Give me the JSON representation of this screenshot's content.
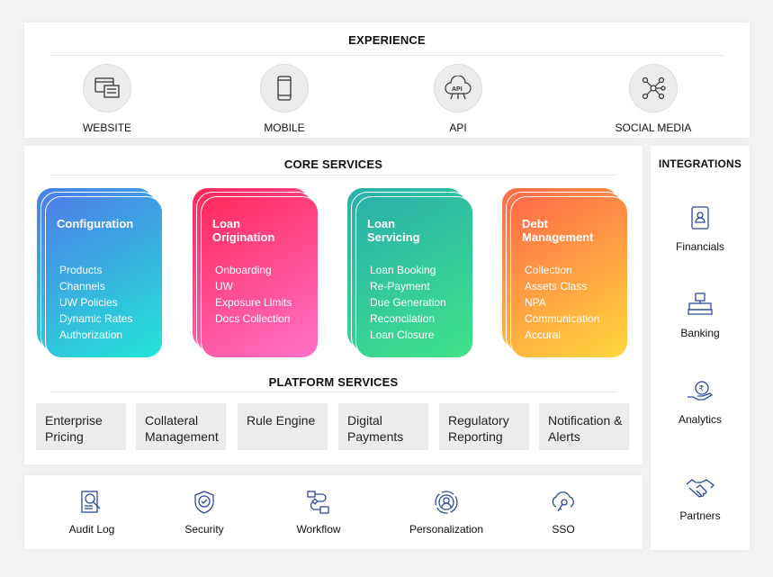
{
  "experience": {
    "title": "EXPERIENCE",
    "items": [
      {
        "label": "WEBSITE",
        "icon": "website-icon"
      },
      {
        "label": "MOBILE",
        "icon": "mobile-icon"
      },
      {
        "label": "API",
        "icon": "api-icon"
      },
      {
        "label": "SOCIAL MEDIA",
        "icon": "social-media-icon"
      }
    ]
  },
  "core": {
    "title": "CORE SERVICES",
    "cards": [
      {
        "title": "Configuration",
        "items": [
          "Products",
          "Channels",
          "UW Policies",
          "Dynamic Rates",
          "Authorization"
        ],
        "colors": [
          "#4c7ee8",
          "#22e6d6"
        ]
      },
      {
        "title": "Loan Origination",
        "items": [
          "Onboarding",
          "UW",
          "Exposure Limits",
          "Docs Collection"
        ],
        "colors": [
          "#ff2a5c",
          "#ff72c8"
        ]
      },
      {
        "title": "Loan Servicing",
        "items": [
          "Loan Booking",
          "Re-Payment",
          "Due Generation",
          "Reconcilation",
          "Loan Closure"
        ],
        "colors": [
          "#2ab0ab",
          "#3fe388"
        ]
      },
      {
        "title": "Debt Management",
        "items": [
          "Collection",
          "Assets Class",
          "NPA",
          "Communication",
          "Accural"
        ],
        "colors": [
          "#ff6a4a",
          "#ffd83c"
        ]
      }
    ]
  },
  "platform": {
    "title": "PLATFORM SERVICES",
    "items": [
      "Enterprise Pricing",
      "Collateral Management",
      "Rule Engine",
      "Digital Payments",
      "Regulatory Reporting",
      "Notification & Alerts"
    ]
  },
  "bottom": {
    "items": [
      {
        "label": "Audit Log",
        "icon": "audit-log-icon"
      },
      {
        "label": "Security",
        "icon": "shield-check-icon"
      },
      {
        "label": "Workflow",
        "icon": "workflow-icon"
      },
      {
        "label": "Personalization",
        "icon": "personalization-icon"
      },
      {
        "label": "SSO",
        "icon": "cloud-key-icon"
      }
    ]
  },
  "integrations": {
    "title": "INTEGRATIONS",
    "items": [
      {
        "label": "Financials",
        "icon": "id-card-icon"
      },
      {
        "label": "Banking",
        "icon": "bank-icon"
      },
      {
        "label": "Analytics",
        "icon": "rupee-hand-icon"
      },
      {
        "label": "Partners",
        "icon": "handshake-icon"
      }
    ]
  },
  "icon_color": "#2b4a9e"
}
